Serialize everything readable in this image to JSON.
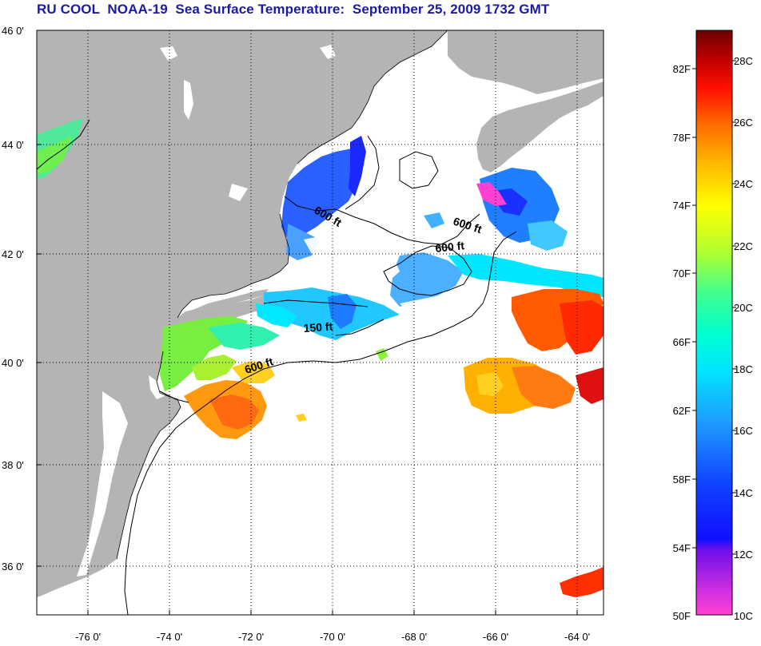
{
  "title": "RU COOL  NOAA-19  Sea Surface Temperature:  September 25, 2009 1732 GMT",
  "map": {
    "lat_range": [
      35.0,
      46.0
    ],
    "lon_range": [
      -77.0,
      -63.0
    ],
    "lat_ticks": [
      "46 0'",
      "44 0'",
      "42 0'",
      "40 0'",
      "38 0'",
      "36 0'"
    ],
    "lon_ticks": [
      "-76 0'",
      "-74 0'",
      "-72 0'",
      "-70 0'",
      "-68 0'",
      "-66 0'",
      "-64 0'"
    ],
    "grid": "dotted",
    "land_color": "#b4b4b4",
    "ocean_color": "#ffffff",
    "contour_labels": [
      "600 ft",
      "600 ft",
      "600 ft",
      "150 ft",
      "600 ft"
    ]
  },
  "colorbar": {
    "range_f": [
      50,
      84
    ],
    "range_c": [
      10,
      29
    ],
    "fahrenheit_labels": [
      "82F",
      "78F",
      "74F",
      "70F",
      "66F",
      "62F",
      "58F",
      "54F",
      "50F"
    ],
    "celsius_labels": [
      "28C",
      "26C",
      "24C",
      "22C",
      "20C",
      "18C",
      "16C",
      "14C",
      "12C",
      "10C"
    ],
    "colors": [
      "#ff40d0",
      "#9a2cd8",
      "#1010ff",
      "#1e78ff",
      "#00e6ff",
      "#40ff90",
      "#b0ff30",
      "#ffff00",
      "#ffb000",
      "#ff5a00",
      "#ff0000",
      "#7a0000"
    ]
  }
}
